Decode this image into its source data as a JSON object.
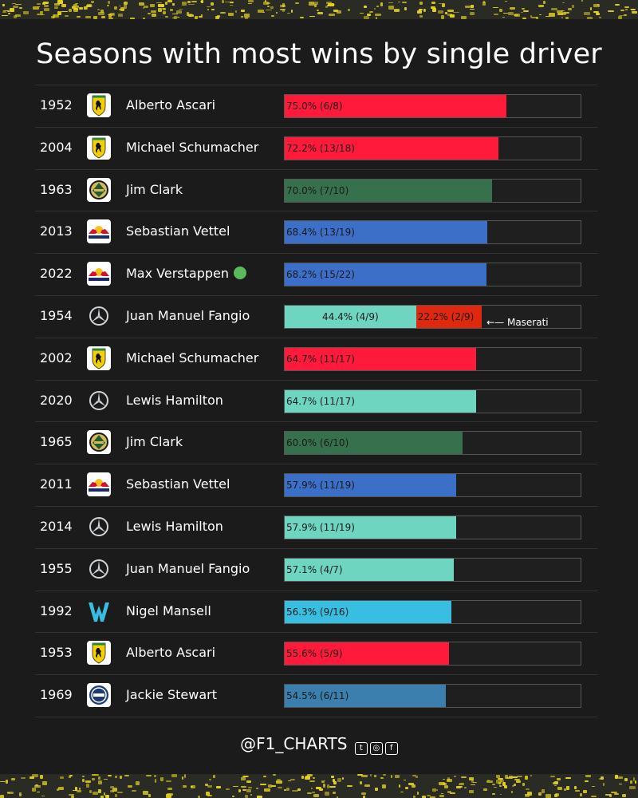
{
  "title": "Seasons with most wins by single driver",
  "footer": {
    "handle": "@F1_CHARTS",
    "icons": [
      "twitter-icon",
      "instagram-icon",
      "facebook-icon"
    ]
  },
  "colors": {
    "ferrari": "#ff1a3c",
    "lotus": "#36704d",
    "redbull": "#3c6fc7",
    "mercedes": "#6dd5c0",
    "maserati": "#e0280e",
    "williams": "#38bee0",
    "matra": "#3a7fae",
    "background": "#1b1b1b"
  },
  "chart_data": {
    "type": "bar",
    "title": "Seasons with most wins by single driver",
    "xlim": [
      0,
      100
    ],
    "rows": [
      {
        "year": "1952",
        "driver": "Alberto Ascari",
        "team": "Ferrari",
        "logo": "ferrari-logo-icon",
        "current": false,
        "segments": [
          {
            "value": 75.0,
            "label": "75.0% (6/8)",
            "color": "#ff1a3c"
          }
        ]
      },
      {
        "year": "2004",
        "driver": "Michael Schumacher",
        "team": "Ferrari",
        "logo": "ferrari-logo-icon",
        "current": false,
        "segments": [
          {
            "value": 72.2,
            "label": "72.2% (13/18)",
            "color": "#ff1a3c"
          }
        ]
      },
      {
        "year": "1963",
        "driver": "Jim Clark",
        "team": "Lotus",
        "logo": "lotus-logo-icon",
        "current": false,
        "segments": [
          {
            "value": 70.0,
            "label": "70.0% (7/10)",
            "color": "#36704d"
          }
        ]
      },
      {
        "year": "2013",
        "driver": "Sebastian Vettel",
        "team": "Red Bull",
        "logo": "redbull-logo-icon",
        "current": false,
        "segments": [
          {
            "value": 68.4,
            "label": "68.4% (13/19)",
            "color": "#3c6fc7"
          }
        ]
      },
      {
        "year": "2022",
        "driver": "Max Verstappen",
        "team": "Red Bull",
        "logo": "redbull-logo-icon",
        "current": true,
        "segments": [
          {
            "value": 68.2,
            "label": "68.2% (15/22)",
            "color": "#3c6fc7"
          }
        ]
      },
      {
        "year": "1954",
        "driver": "Juan Manuel Fangio",
        "team": "Mercedes",
        "logo": "mercedes-logo-icon",
        "current": false,
        "note": "Maserati",
        "segments": [
          {
            "value": 44.4,
            "label": "44.4% (4/9)",
            "color": "#6dd5c0",
            "center": true
          },
          {
            "value": 22.2,
            "label": "22.2% (2/9)",
            "color": "#e0280e"
          }
        ]
      },
      {
        "year": "2002",
        "driver": "Michael Schumacher",
        "team": "Ferrari",
        "logo": "ferrari-logo-icon",
        "current": false,
        "segments": [
          {
            "value": 64.7,
            "label": "64.7% (11/17)",
            "color": "#ff1a3c"
          }
        ]
      },
      {
        "year": "2020",
        "driver": "Lewis Hamilton",
        "team": "Mercedes",
        "logo": "mercedes-logo-icon",
        "current": false,
        "segments": [
          {
            "value": 64.7,
            "label": "64.7% (11/17)",
            "color": "#6dd5c0"
          }
        ]
      },
      {
        "year": "1965",
        "driver": "Jim Clark",
        "team": "Lotus",
        "logo": "lotus-logo-icon",
        "current": false,
        "segments": [
          {
            "value": 60.0,
            "label": "60.0% (6/10)",
            "color": "#36704d"
          }
        ]
      },
      {
        "year": "2011",
        "driver": "Sebastian Vettel",
        "team": "Red Bull",
        "logo": "redbull-logo-icon",
        "current": false,
        "segments": [
          {
            "value": 57.9,
            "label": "57.9% (11/19)",
            "color": "#3c6fc7"
          }
        ]
      },
      {
        "year": "2014",
        "driver": "Lewis Hamilton",
        "team": "Mercedes",
        "logo": "mercedes-logo-icon",
        "current": false,
        "segments": [
          {
            "value": 57.9,
            "label": "57.9% (11/19)",
            "color": "#6dd5c0"
          }
        ]
      },
      {
        "year": "1955",
        "driver": "Juan Manuel Fangio",
        "team": "Mercedes",
        "logo": "mercedes-logo-icon",
        "current": false,
        "segments": [
          {
            "value": 57.1,
            "label": "57.1% (4/7)",
            "color": "#6dd5c0"
          }
        ]
      },
      {
        "year": "1992",
        "driver": "Nigel Mansell",
        "team": "Williams",
        "logo": "williams-logo-icon",
        "current": false,
        "segments": [
          {
            "value": 56.3,
            "label": "56.3% (9/16)",
            "color": "#38bee0"
          }
        ]
      },
      {
        "year": "1953",
        "driver": "Alberto Ascari",
        "team": "Ferrari",
        "logo": "ferrari-logo-icon",
        "current": false,
        "segments": [
          {
            "value": 55.6,
            "label": "55.6% (5/9)",
            "color": "#ff1a3c"
          }
        ]
      },
      {
        "year": "1969",
        "driver": "Jackie Stewart",
        "team": "Matra",
        "logo": "matra-logo-icon",
        "current": false,
        "segments": [
          {
            "value": 54.5,
            "label": "54.5% (6/11)",
            "color": "#3a7fae"
          }
        ]
      }
    ]
  }
}
